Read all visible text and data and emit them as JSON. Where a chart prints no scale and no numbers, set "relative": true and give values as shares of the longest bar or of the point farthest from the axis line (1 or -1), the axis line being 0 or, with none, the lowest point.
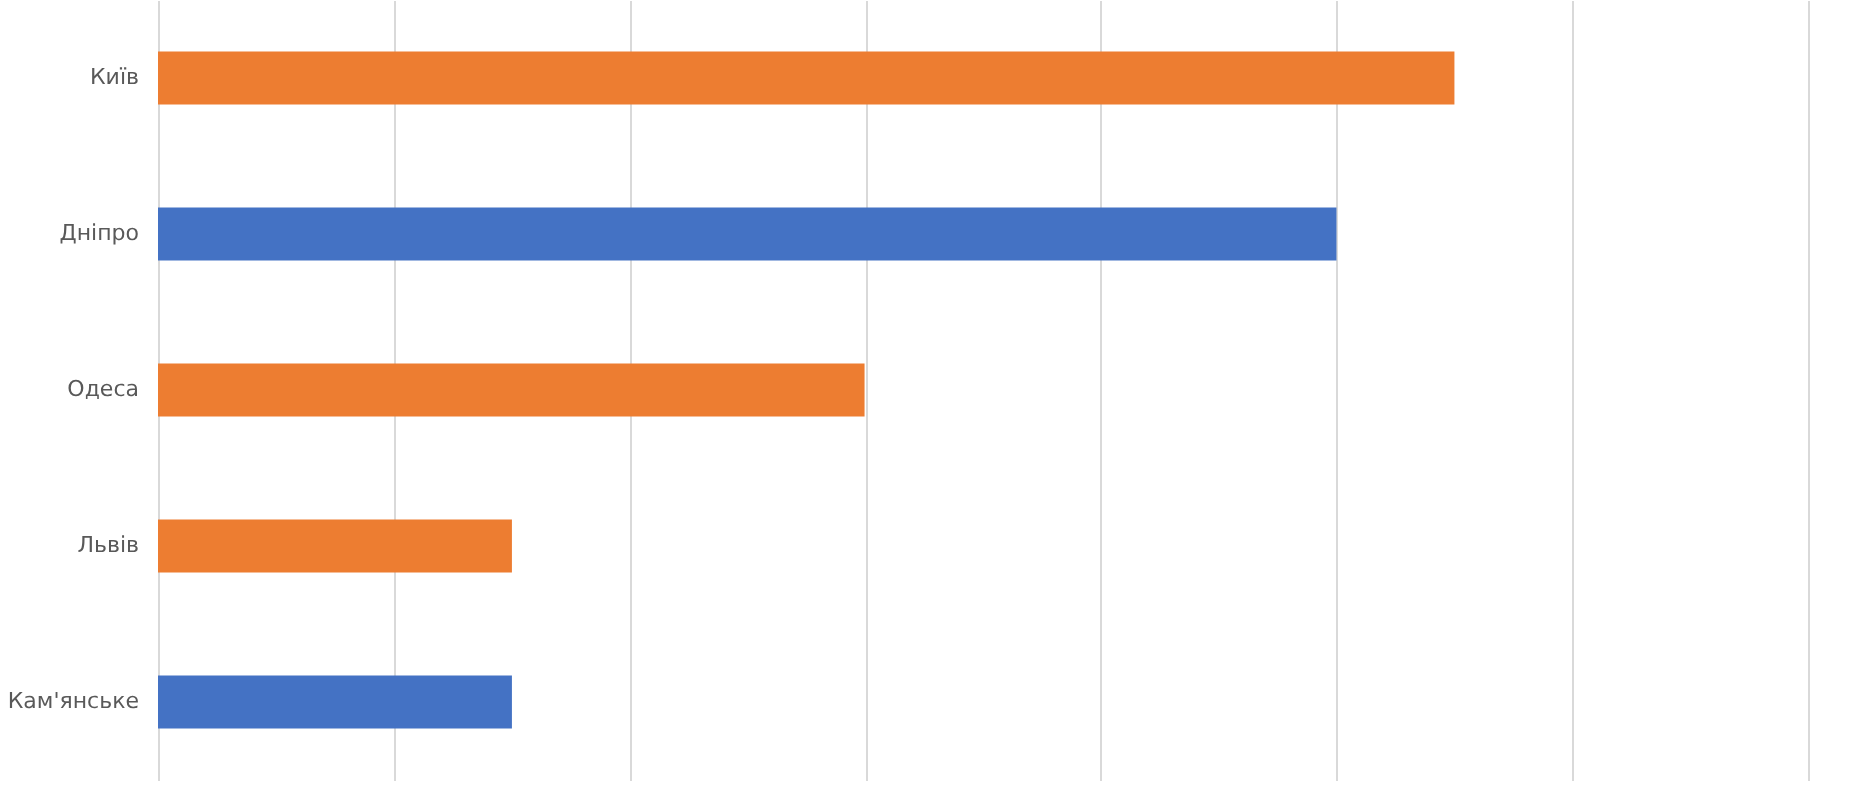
{
  "chart_data": {
    "type": "bar",
    "orientation": "horizontal",
    "relative": true,
    "grid": "x",
    "categories": [
      "Київ",
      "Дніпро",
      "Одеса",
      "Львів",
      "Кам'янське"
    ],
    "values": [
      1,
      0.909,
      0.545,
      0.273,
      0.273
    ],
    "colors": [
      "#ed7d31",
      "#4472c4",
      "#ed7d31",
      "#ed7d31",
      "#4472c4"
    ]
  }
}
